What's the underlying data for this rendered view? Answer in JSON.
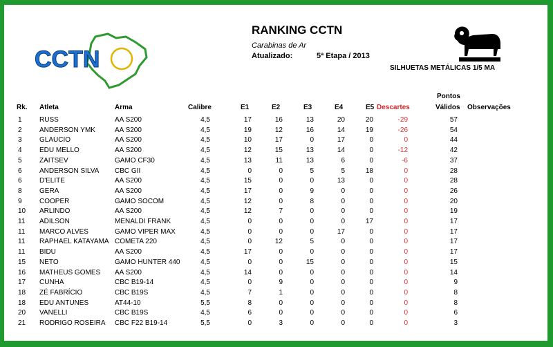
{
  "logo": {
    "text": "CCTN"
  },
  "header": {
    "title": "RANKING CCTN",
    "subtitle": "Carabinas de Ar",
    "updated_label": "Atualizado:",
    "updated_value": "5ª Etapa / 2013",
    "category": "SILHUETAS METÁLICAS 1/5 MA",
    "category_icon": "ram-silhouette-icon"
  },
  "table": {
    "headers": {
      "rank": "Rk.",
      "athlete": "Atleta",
      "weapon": "Arma",
      "caliber": "Calibre",
      "e1": "E1",
      "e2": "E2",
      "e3": "E3",
      "e4": "E4",
      "e5": "E5",
      "discards": "Descartes",
      "points_line1": "Pontos",
      "points_line2": "Válidos",
      "notes": "Observações"
    },
    "rows": [
      {
        "rank": "1",
        "athlete": "RUSS",
        "weapon": "AA S200",
        "caliber": "4,5",
        "e1": "17",
        "e2": "16",
        "e3": "13",
        "e4": "20",
        "e5": "20",
        "discards": "-29",
        "points": "57"
      },
      {
        "rank": "2",
        "athlete": "ANDERSON YMK",
        "weapon": "AA S200",
        "caliber": "4,5",
        "e1": "19",
        "e2": "12",
        "e3": "16",
        "e4": "14",
        "e5": "19",
        "discards": "-26",
        "points": "54"
      },
      {
        "rank": "3",
        "athlete": "GLAUCIO",
        "weapon": "AA S200",
        "caliber": "4,5",
        "e1": "10",
        "e2": "17",
        "e3": "0",
        "e4": "17",
        "e5": "0",
        "discards": "0",
        "points": "44"
      },
      {
        "rank": "4",
        "athlete": "EDU MELLO",
        "weapon": "AA S200",
        "caliber": "4,5",
        "e1": "12",
        "e2": "15",
        "e3": "13",
        "e4": "14",
        "e5": "0",
        "discards": "-12",
        "points": "42"
      },
      {
        "rank": "5",
        "athlete": "ZAITSEV",
        "weapon": "GAMO CF30",
        "caliber": "4,5",
        "e1": "13",
        "e2": "11",
        "e3": "13",
        "e4": "6",
        "e5": "0",
        "discards": "-6",
        "points": "37"
      },
      {
        "rank": "6",
        "athlete": "ANDERSON SILVA",
        "weapon": "CBC GII",
        "caliber": "4,5",
        "e1": "0",
        "e2": "0",
        "e3": "5",
        "e4": "5",
        "e5": "18",
        "discards": "0",
        "points": "28"
      },
      {
        "rank": "6",
        "athlete": "D'ELITE",
        "weapon": "AA S200",
        "caliber": "4,5",
        "e1": "15",
        "e2": "0",
        "e3": "0",
        "e4": "13",
        "e5": "0",
        "discards": "0",
        "points": "28"
      },
      {
        "rank": "8",
        "athlete": "GERA",
        "weapon": "AA S200",
        "caliber": "4,5",
        "e1": "17",
        "e2": "0",
        "e3": "9",
        "e4": "0",
        "e5": "0",
        "discards": "0",
        "points": "26"
      },
      {
        "rank": "9",
        "athlete": "COOPER",
        "weapon": "GAMO SOCOM",
        "caliber": "4,5",
        "e1": "12",
        "e2": "0",
        "e3": "8",
        "e4": "0",
        "e5": "0",
        "discards": "0",
        "points": "20"
      },
      {
        "rank": "10",
        "athlete": "ARLINDO",
        "weapon": "AA S200",
        "caliber": "4,5",
        "e1": "12",
        "e2": "7",
        "e3": "0",
        "e4": "0",
        "e5": "0",
        "discards": "0",
        "points": "19"
      },
      {
        "rank": "11",
        "athlete": "ADILSON",
        "weapon": "MENALDI FRANK",
        "caliber": "4,5",
        "e1": "0",
        "e2": "0",
        "e3": "0",
        "e4": "0",
        "e5": "17",
        "discards": "0",
        "points": "17"
      },
      {
        "rank": "11",
        "athlete": "MARCO ALVES",
        "weapon": "GAMO VIPER MAX",
        "caliber": "4,5",
        "e1": "0",
        "e2": "0",
        "e3": "0",
        "e4": "17",
        "e5": "0",
        "discards": "0",
        "points": "17"
      },
      {
        "rank": "11",
        "athlete": "RAPHAEL KATAYAMA",
        "weapon": "COMETA 220",
        "caliber": "4,5",
        "e1": "0",
        "e2": "12",
        "e3": "5",
        "e4": "0",
        "e5": "0",
        "discards": "0",
        "points": "17"
      },
      {
        "rank": "11",
        "athlete": "BIDU",
        "weapon": "AA S200",
        "caliber": "4,5",
        "e1": "17",
        "e2": "0",
        "e3": "0",
        "e4": "0",
        "e5": "0",
        "discards": "0",
        "points": "17"
      },
      {
        "rank": "15",
        "athlete": "NETO",
        "weapon": "GAMO HUNTER 440",
        "caliber": "4,5",
        "e1": "0",
        "e2": "0",
        "e3": "15",
        "e4": "0",
        "e5": "0",
        "discards": "0",
        "points": "15"
      },
      {
        "rank": "16",
        "athlete": "MATHEUS GOMES",
        "weapon": "AA S200",
        "caliber": "4,5",
        "e1": "14",
        "e2": "0",
        "e3": "0",
        "e4": "0",
        "e5": "0",
        "discards": "0",
        "points": "14"
      },
      {
        "rank": "17",
        "athlete": "CUNHA",
        "weapon": "CBC B19-14",
        "caliber": "4,5",
        "e1": "0",
        "e2": "9",
        "e3": "0",
        "e4": "0",
        "e5": "0",
        "discards": "0",
        "points": "9"
      },
      {
        "rank": "18",
        "athlete": "ZÉ FABRÍCIO",
        "weapon": "CBC B19S",
        "caliber": "4,5",
        "e1": "7",
        "e2": "1",
        "e3": "0",
        "e4": "0",
        "e5": "0",
        "discards": "0",
        "points": "8"
      },
      {
        "rank": "18",
        "athlete": "EDU ANTUNES",
        "weapon": "AT44-10",
        "caliber": "5,5",
        "e1": "8",
        "e2": "0",
        "e3": "0",
        "e4": "0",
        "e5": "0",
        "discards": "0",
        "points": "8"
      },
      {
        "rank": "20",
        "athlete": "VANELLI",
        "weapon": "CBC B19S",
        "caliber": "4,5",
        "e1": "6",
        "e2": "0",
        "e3": "0",
        "e4": "0",
        "e5": "0",
        "discards": "0",
        "points": "6"
      },
      {
        "rank": "21",
        "athlete": "RODRIGO ROSEIRA",
        "weapon": "CBC F22 B19-14",
        "caliber": "5,5",
        "e1": "0",
        "e2": "3",
        "e3": "0",
        "e4": "0",
        "e5": "0",
        "discards": "0",
        "points": "3"
      }
    ]
  },
  "colors": {
    "frame": "#1f9a2e",
    "logo_blue": "#1a6fd1",
    "map_green": "#2f9a2f",
    "ring_yellow": "#e0b400",
    "discard_red": "#e03030"
  }
}
